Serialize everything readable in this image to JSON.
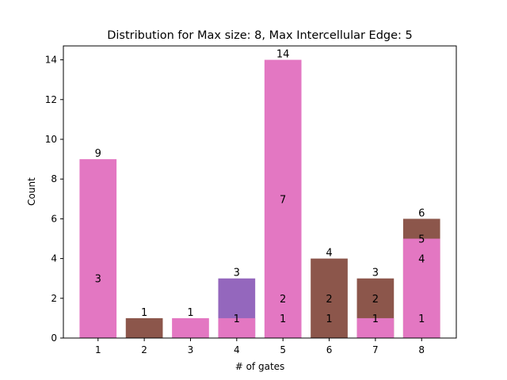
{
  "chart_data": {
    "type": "bar",
    "title": "Distribution for Max size: 8, Max Intercellular Edge: 5",
    "xlabel": "# of gates",
    "ylabel": "Count",
    "ylim": [
      0,
      14.7
    ],
    "xlim": [
      0.25,
      8.75
    ],
    "yticks": [
      0,
      2,
      4,
      6,
      8,
      10,
      12,
      14
    ],
    "xticks": [
      1,
      2,
      3,
      4,
      5,
      6,
      7,
      8
    ],
    "grid": false,
    "colors": {
      "pink": "#e377c2",
      "brown": "#8c564b",
      "purple": "#9467bd"
    },
    "bars": [
      {
        "x": 1,
        "value": 9,
        "color": "pink"
      },
      {
        "x": 2,
        "value": 1,
        "color": "brown"
      },
      {
        "x": 3,
        "value": 1,
        "color": "pink"
      },
      {
        "x": 4,
        "value": 3,
        "color": "purple"
      },
      {
        "x": 4,
        "value": 1,
        "color": "pink"
      },
      {
        "x": 5,
        "value": 14,
        "color": "pink"
      },
      {
        "x": 6,
        "value": 4,
        "color": "brown"
      },
      {
        "x": 7,
        "value": 3,
        "color": "brown"
      },
      {
        "x": 7,
        "value": 1,
        "color": "pink"
      },
      {
        "x": 8,
        "value": 6,
        "color": "brown"
      },
      {
        "x": 8,
        "value": 5,
        "color": "pink"
      }
    ],
    "labels": [
      {
        "x": 1,
        "y": 9,
        "text": "9",
        "pos": "top"
      },
      {
        "x": 1,
        "y": 3,
        "text": "3",
        "pos": "center"
      },
      {
        "x": 2,
        "y": 1,
        "text": "1",
        "pos": "top"
      },
      {
        "x": 3,
        "y": 1,
        "text": "1",
        "pos": "top"
      },
      {
        "x": 4,
        "y": 3,
        "text": "3",
        "pos": "top"
      },
      {
        "x": 4,
        "y": 1,
        "text": "1",
        "pos": "center"
      },
      {
        "x": 5,
        "y": 14,
        "text": "14",
        "pos": "top"
      },
      {
        "x": 5,
        "y": 7,
        "text": "7",
        "pos": "center"
      },
      {
        "x": 5,
        "y": 2,
        "text": "2",
        "pos": "center"
      },
      {
        "x": 5,
        "y": 1,
        "text": "1",
        "pos": "center"
      },
      {
        "x": 6,
        "y": 4,
        "text": "4",
        "pos": "top"
      },
      {
        "x": 6,
        "y": 2,
        "text": "2",
        "pos": "center"
      },
      {
        "x": 6,
        "y": 1,
        "text": "1",
        "pos": "center"
      },
      {
        "x": 7,
        "y": 3,
        "text": "3",
        "pos": "top"
      },
      {
        "x": 7,
        "y": 2,
        "text": "2",
        "pos": "center"
      },
      {
        "x": 7,
        "y": 1,
        "text": "1",
        "pos": "center"
      },
      {
        "x": 8,
        "y": 6,
        "text": "6",
        "pos": "top"
      },
      {
        "x": 8,
        "y": 5,
        "text": "5",
        "pos": "center"
      },
      {
        "x": 8,
        "y": 4,
        "text": "4",
        "pos": "center"
      },
      {
        "x": 8,
        "y": 1,
        "text": "1",
        "pos": "center"
      }
    ]
  }
}
